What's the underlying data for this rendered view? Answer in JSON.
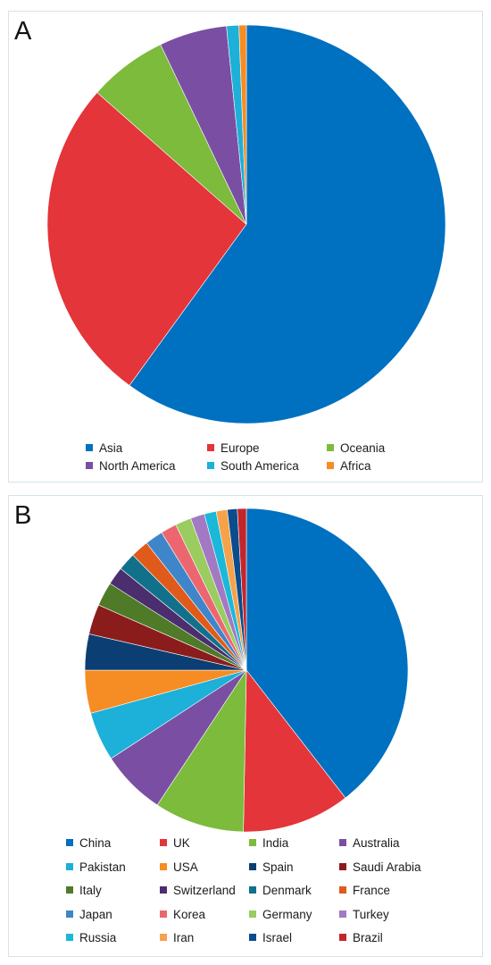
{
  "chart_data": [
    {
      "type": "pie",
      "panel_label": "A",
      "title": "",
      "categories": [
        "Asia",
        "Europe",
        "Oceania",
        "North America",
        "South America",
        "Africa"
      ],
      "values": [
        60.0,
        26.5,
        6.4,
        5.5,
        1.0,
        0.6
      ],
      "colors": [
        "#0070C0",
        "#E3353A",
        "#7CBB3B",
        "#7A4FA3",
        "#1DB0D8",
        "#F68C24"
      ],
      "legend_position": "bottom"
    },
    {
      "type": "pie",
      "panel_label": "B",
      "title": "",
      "categories": [
        "China",
        "UK",
        "India",
        "Australia",
        "Pakistan",
        "USA",
        "Spain",
        "Saudi Arabia",
        "Italy",
        "Switzerland",
        "Denmark",
        "France",
        "Japan",
        "Korea",
        "Germany",
        "Turkey",
        "Russia",
        "Iran",
        "Israel",
        "Brazil"
      ],
      "values": [
        39.5,
        10.8,
        9.0,
        6.5,
        4.9,
        4.3,
        3.6,
        3.0,
        2.4,
        1.8,
        1.8,
        1.8,
        1.8,
        1.6,
        1.6,
        1.4,
        1.2,
        1.1,
        1.0,
        0.9
      ],
      "colors": [
        "#0070C0",
        "#E3353A",
        "#7CBB3B",
        "#7A4FA3",
        "#1DB0D8",
        "#F68C24",
        "#0B3F73",
        "#8B1C1C",
        "#4F7A28",
        "#4A2E6E",
        "#12718A",
        "#E05A1B",
        "#3E86C9",
        "#EC6670",
        "#9ACC60",
        "#A279C2",
        "#1AB8D9",
        "#F6A24A",
        "#0A4C8C",
        "#C2262B"
      ],
      "legend_position": "bottom"
    }
  ]
}
